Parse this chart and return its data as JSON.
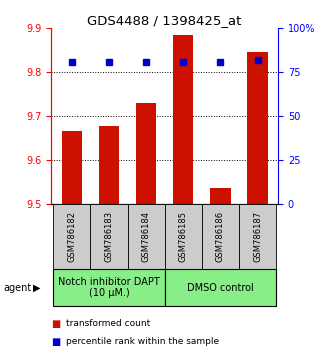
{
  "title": "GDS4488 / 1398425_at",
  "samples": [
    "GSM786182",
    "GSM786183",
    "GSM786184",
    "GSM786185",
    "GSM786186",
    "GSM786187"
  ],
  "bar_values": [
    9.665,
    9.678,
    9.73,
    9.885,
    9.535,
    9.845
  ],
  "percentile_values": [
    80.5,
    80.5,
    80.5,
    81.0,
    80.5,
    82.0
  ],
  "bar_bottom": 9.5,
  "ylim_left": [
    9.5,
    9.9
  ],
  "ylim_right": [
    0,
    100
  ],
  "yticks_left": [
    9.5,
    9.6,
    9.7,
    9.8,
    9.9
  ],
  "yticks_right": [
    0,
    25,
    50,
    75,
    100
  ],
  "ytick_labels_right": [
    "0",
    "25",
    "50",
    "75",
    "100%"
  ],
  "bar_color": "#cc1100",
  "percentile_color": "#0000cc",
  "group1_label": "Notch inhibitor DAPT\n(10 μM.)",
  "group2_label": "DMSO control",
  "group_bg_color": "#88ee88",
  "sample_bg_color": "#cccccc",
  "agent_label": "agent",
  "legend_bar_label": "transformed count",
  "legend_pct_label": "percentile rank within the sample",
  "title_fontsize": 9.5,
  "tick_fontsize": 7,
  "sample_fontsize": 6,
  "group_fontsize": 7,
  "legend_fontsize": 6.5
}
